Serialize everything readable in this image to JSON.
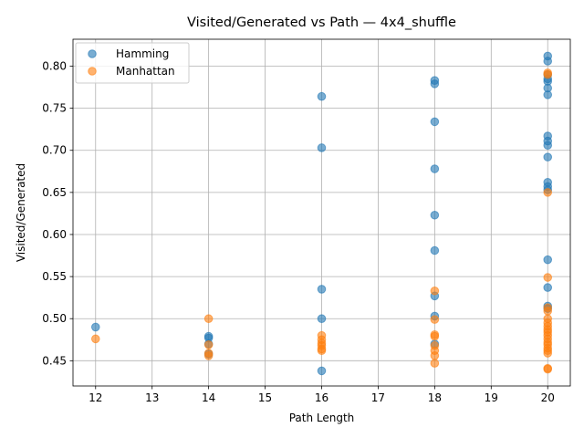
{
  "chart_data": {
    "type": "scatter",
    "title": "Visited/Generated vs Path — 4x4_shuffle",
    "xlabel": "Path Length",
    "ylabel": "Visited/Generated",
    "xlim": [
      11.6,
      20.4
    ],
    "ylim": [
      0.42,
      0.832
    ],
    "xticks": [
      12,
      13,
      14,
      15,
      16,
      17,
      18,
      19,
      20
    ],
    "yticks": [
      0.45,
      0.5,
      0.55,
      0.6,
      0.65,
      0.7,
      0.75,
      0.8
    ],
    "ytick_labels": [
      "0.45",
      "0.50",
      "0.55",
      "0.60",
      "0.65",
      "0.70",
      "0.75",
      "0.80"
    ],
    "grid": true,
    "legend_position": "upper-left",
    "series": [
      {
        "name": "Hamming",
        "color": "#1f77b4",
        "points": [
          [
            12,
            0.49
          ],
          [
            14,
            0.479
          ],
          [
            14,
            0.477
          ],
          [
            14,
            0.47
          ],
          [
            14,
            0.458
          ],
          [
            16,
            0.764
          ],
          [
            16,
            0.703
          ],
          [
            16,
            0.535
          ],
          [
            16,
            0.5
          ],
          [
            16,
            0.438
          ],
          [
            18,
            0.783
          ],
          [
            18,
            0.779
          ],
          [
            18,
            0.734
          ],
          [
            18,
            0.678
          ],
          [
            18,
            0.623
          ],
          [
            18,
            0.581
          ],
          [
            18,
            0.527
          ],
          [
            18,
            0.503
          ],
          [
            18,
            0.47
          ],
          [
            20,
            0.812
          ],
          [
            20,
            0.806
          ],
          [
            20,
            0.79
          ],
          [
            20,
            0.785
          ],
          [
            20,
            0.782
          ],
          [
            20,
            0.774
          ],
          [
            20,
            0.766
          ],
          [
            20,
            0.717
          ],
          [
            20,
            0.711
          ],
          [
            20,
            0.706
          ],
          [
            20,
            0.692
          ],
          [
            20,
            0.662
          ],
          [
            20,
            0.657
          ],
          [
            20,
            0.653
          ],
          [
            20,
            0.57
          ],
          [
            20,
            0.537
          ],
          [
            20,
            0.515
          ],
          [
            20,
            0.512
          ]
        ]
      },
      {
        "name": "Manhattan",
        "color": "#ff7f0e",
        "points": [
          [
            12,
            0.476
          ],
          [
            14,
            0.5
          ],
          [
            14,
            0.469
          ],
          [
            14,
            0.459
          ],
          [
            14,
            0.456
          ],
          [
            16,
            0.48
          ],
          [
            16,
            0.475
          ],
          [
            16,
            0.471
          ],
          [
            16,
            0.468
          ],
          [
            16,
            0.464
          ],
          [
            16,
            0.462
          ],
          [
            18,
            0.533
          ],
          [
            18,
            0.499
          ],
          [
            18,
            0.481
          ],
          [
            18,
            0.479
          ],
          [
            18,
            0.468
          ],
          [
            18,
            0.462
          ],
          [
            18,
            0.456
          ],
          [
            18,
            0.447
          ],
          [
            20,
            0.792
          ],
          [
            20,
            0.79
          ],
          [
            20,
            0.65
          ],
          [
            20,
            0.549
          ],
          [
            20,
            0.513
          ],
          [
            20,
            0.509
          ],
          [
            20,
            0.5
          ],
          [
            20,
            0.495
          ],
          [
            20,
            0.491
          ],
          [
            20,
            0.487
          ],
          [
            20,
            0.484
          ],
          [
            20,
            0.48
          ],
          [
            20,
            0.476
          ],
          [
            20,
            0.472
          ],
          [
            20,
            0.469
          ],
          [
            20,
            0.465
          ],
          [
            20,
            0.462
          ],
          [
            20,
            0.459
          ],
          [
            20,
            0.441
          ],
          [
            20,
            0.44
          ]
        ]
      }
    ]
  }
}
